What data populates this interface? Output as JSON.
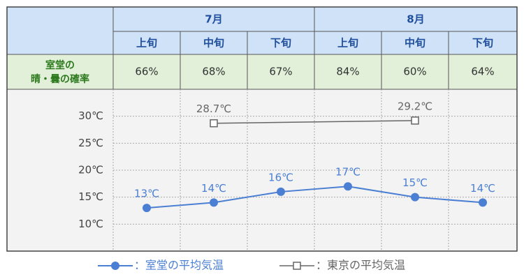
{
  "table": {
    "months": [
      "7月",
      "8月"
    ],
    "periods": [
      "上旬",
      "中旬",
      "下旬",
      "上旬",
      "中旬",
      "下旬"
    ],
    "row_label": [
      "室堂の",
      "晴・曇の確率"
    ],
    "row_values": [
      "66%",
      "68%",
      "67%",
      "84%",
      "60%",
      "64%"
    ]
  },
  "chart_data": {
    "type": "line",
    "categories": [
      null,
      null,
      null,
      null,
      null,
      null
    ],
    "ylim": [
      5,
      35
    ],
    "yticks": [
      {
        "value": 10,
        "label": "10℃"
      },
      {
        "value": 15,
        "label": "15℃"
      },
      {
        "value": 20,
        "label": "20℃"
      },
      {
        "value": 25,
        "label": "25℃"
      },
      {
        "value": 30,
        "label": "30℃"
      }
    ],
    "grid": true,
    "series": [
      {
        "name": "：室堂の平均気温",
        "color": "#4a7fd4",
        "marker": "circle",
        "values": [
          13,
          14,
          16,
          17,
          15,
          14
        ],
        "value_labels": [
          "13℃",
          "14℃",
          "16℃",
          "17℃",
          "15℃",
          "14℃"
        ]
      },
      {
        "name": "：東京の平均気温",
        "color": "#666666",
        "marker": "square",
        "span_gaps": true,
        "values": [
          null,
          28.7,
          null,
          null,
          29.2,
          null
        ],
        "value_labels": [
          null,
          "28.7℃",
          null,
          null,
          "29.2℃",
          null
        ]
      }
    ]
  }
}
